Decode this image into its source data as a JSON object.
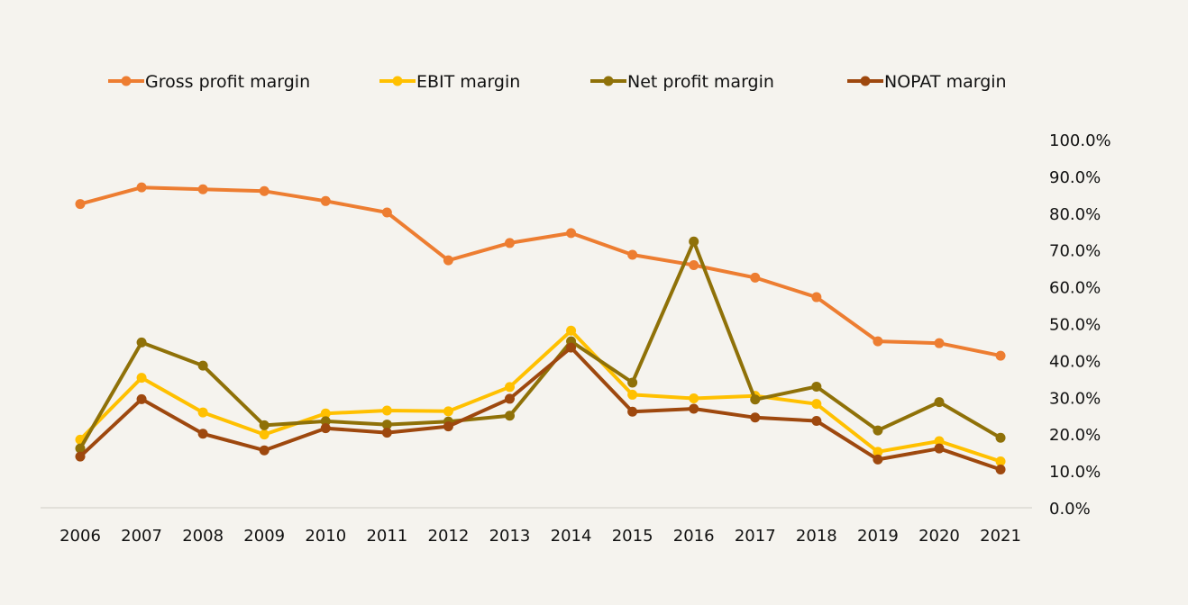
{
  "chart_data": {
    "type": "line",
    "title": "",
    "xlabel": "",
    "ylabel": "",
    "categories": [
      "2006",
      "2007",
      "2008",
      "2009",
      "2010",
      "2011",
      "2012",
      "2013",
      "2014",
      "2015",
      "2016",
      "2017",
      "2018",
      "2019",
      "2020",
      "2021"
    ],
    "ylim": [
      0,
      100
    ],
    "y_ticks": [
      "100.0%",
      "90.0%",
      "80.0%",
      "70.0%",
      "60.0%",
      "50.0%",
      "40.0%",
      "30.0%",
      "20.0%",
      "10.0%",
      "0.0%"
    ],
    "y_axis_side": "right",
    "grid": false,
    "legend_position": "top",
    "series": [
      {
        "name": "Gross profit margin",
        "color": "#ed7d31",
        "values": [
          82.5,
          87.0,
          86.5,
          86.0,
          83.3,
          80.2,
          67.2,
          71.9,
          74.6,
          68.7,
          65.9,
          62.5,
          57.2,
          45.2,
          44.7,
          41.3
        ]
      },
      {
        "name": "EBIT margin",
        "color": "#ffc000",
        "values": [
          18.5,
          35.3,
          25.9,
          19.9,
          25.6,
          26.4,
          26.2,
          32.8,
          48.1,
          30.7,
          29.7,
          30.4,
          28.2,
          15.2,
          18.1,
          12.6
        ]
      },
      {
        "name": "Net profit margin",
        "color": "#8f7108",
        "values": [
          16.1,
          44.9,
          38.6,
          22.4,
          23.5,
          22.6,
          23.4,
          25.0,
          45.2,
          34.0,
          72.3,
          29.4,
          32.9,
          21.0,
          28.7,
          19.0
        ]
      },
      {
        "name": "NOPAT margin",
        "color": "#9e480e",
        "values": [
          13.9,
          29.5,
          20.1,
          15.6,
          21.6,
          20.4,
          22.1,
          29.6,
          43.5,
          26.1,
          26.9,
          24.5,
          23.6,
          13.1,
          16.1,
          10.4
        ]
      }
    ]
  }
}
